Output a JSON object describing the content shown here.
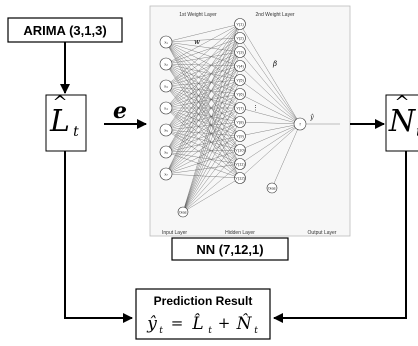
{
  "arima_label": "ARIMA (3,1,3)",
  "l_hat": {
    "base": "L",
    "sub": "t"
  },
  "e_label": "e",
  "n_hat": {
    "base": "N",
    "sub": "t"
  },
  "nn_label": "NN (7,12,1)",
  "nn_image": {
    "first_weight_layer": "1st Weight Layer",
    "second_weight_layer": "2nd Weight Layer",
    "input_layer": "Input Layer",
    "hidden_layer": "Hidden Layer",
    "output_layer": "Output Layer",
    "input_nodes": [
      "x₁",
      "x₂",
      "x₃",
      "x₄",
      "x₅",
      "x₆",
      "x₇"
    ],
    "input_bias": "bias",
    "hidden_nodes": [
      "Y(1)",
      "Y(2)",
      "Y(3)",
      "Y(4)",
      "Y(5)",
      "Y(6)",
      "Y(7)",
      "Y(8)",
      "Y(9)",
      "Y(10)",
      "Y(11)",
      "Y(12)"
    ],
    "hidden_bias": "bias",
    "output_node": "f",
    "output_symbol": "ŷ",
    "weight_1_symbol": "w",
    "weight_2_symbol": "β",
    "hidden_ellipsis": "⋮"
  },
  "prediction": {
    "title": "Prediction Result",
    "formula_y": "ŷ",
    "formula_sub": "t",
    "formula_eq": "=",
    "formula_l": "L̂",
    "formula_plus": "+",
    "formula_n": "N̂"
  },
  "colors": {
    "line": "#000000",
    "network_lines": "#555555"
  }
}
